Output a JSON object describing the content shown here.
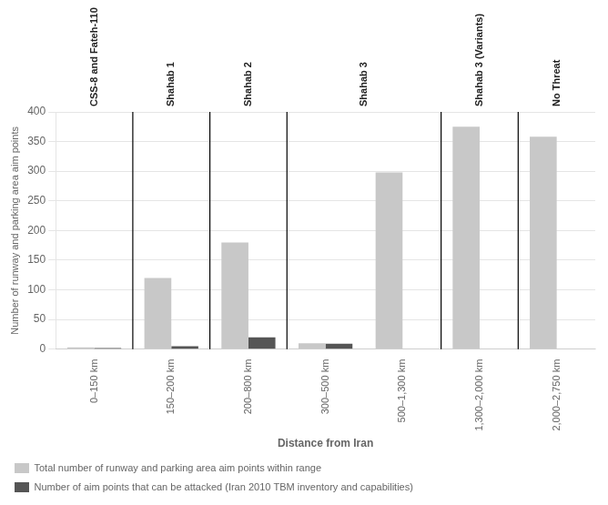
{
  "chart_data": {
    "type": "bar",
    "categories": [
      "0–150 km",
      "150–200 km",
      "200–800 km",
      "300–500 km",
      "500–1,300 km",
      "1,300–2,000 km",
      "2,000–2,750 km"
    ],
    "series": [
      {
        "name": "Total number of runway and parking area aim points within range",
        "color": "#c8c8c8",
        "values": [
          3,
          120,
          180,
          10,
          298,
          375,
          358
        ]
      },
      {
        "name": "Number of aim points that can be attacked (Iran 2010 TBM inventory and capabilities)",
        "color": "#555555",
        "values": [
          2,
          5,
          20,
          9,
          0,
          0,
          0
        ]
      }
    ],
    "annotations": [
      {
        "text": "CSS-8 and Fateh-110",
        "categories": [
          "0–150 km"
        ]
      },
      {
        "text": "Shahab 1",
        "categories": [
          "150–200 km"
        ]
      },
      {
        "text": "Shahab 2",
        "categories": [
          "200–800 km"
        ]
      },
      {
        "text": "Shahab 3",
        "categories": [
          "300–500 km",
          "500–1,300 km"
        ]
      },
      {
        "text": "Shahab 3 (Variants)",
        "categories": [
          "1,300–2,000 km"
        ]
      },
      {
        "text": "No Threat",
        "categories": [
          "2,000–2,750 km"
        ]
      }
    ],
    "ylabel": "Number of runway and parking area aim points",
    "xlabel": "Distance from Iran",
    "ylim": [
      0,
      400
    ],
    "yticks": [
      0,
      50,
      100,
      150,
      200,
      250,
      300,
      350,
      400
    ],
    "grid": true,
    "legend": "bottom"
  }
}
